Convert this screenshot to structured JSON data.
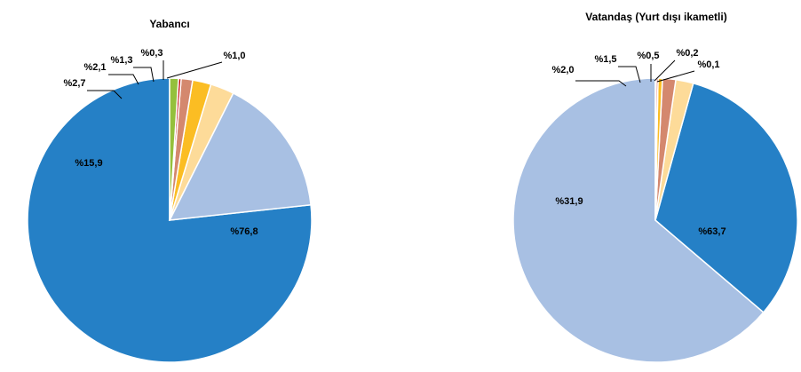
{
  "chart_data": [
    {
      "type": "pie",
      "title": "Yabancı",
      "slices": [
        {
          "value": 76.8,
          "label": "%76,8",
          "color": "#2580c6"
        },
        {
          "value": 15.9,
          "label": "%15,9",
          "color": "#a8c0e3"
        },
        {
          "value": 2.7,
          "label": "%2,7",
          "color": "#fddb99"
        },
        {
          "value": 2.1,
          "label": "%2,1",
          "color": "#fbbd23"
        },
        {
          "value": 1.3,
          "label": "%1,3",
          "color": "#d4886e"
        },
        {
          "value": 0.3,
          "label": "%0,3",
          "color": "#c00000"
        },
        {
          "value": 1.0,
          "label": "%1,0",
          "color": "#94c03c"
        }
      ]
    },
    {
      "type": "pie",
      "title": "Vatandaş (Yurt dışı ikametli)",
      "slices": [
        {
          "value": 63.7,
          "label": "%63,7",
          "color": "#a8c0e3"
        },
        {
          "value": 31.9,
          "label": "%31,9",
          "color": "#2580c6"
        },
        {
          "value": 2.0,
          "label": "%2,0",
          "color": "#fddb99"
        },
        {
          "value": 1.5,
          "label": "%1,5",
          "color": "#d4886e"
        },
        {
          "value": 0.5,
          "label": "%0,5",
          "color": "#fbbd23"
        },
        {
          "value": 0.2,
          "label": "%0,2",
          "color": "#c00000"
        },
        {
          "value": 0.1,
          "label": "%0,1",
          "color": "#94c03c"
        }
      ]
    }
  ]
}
